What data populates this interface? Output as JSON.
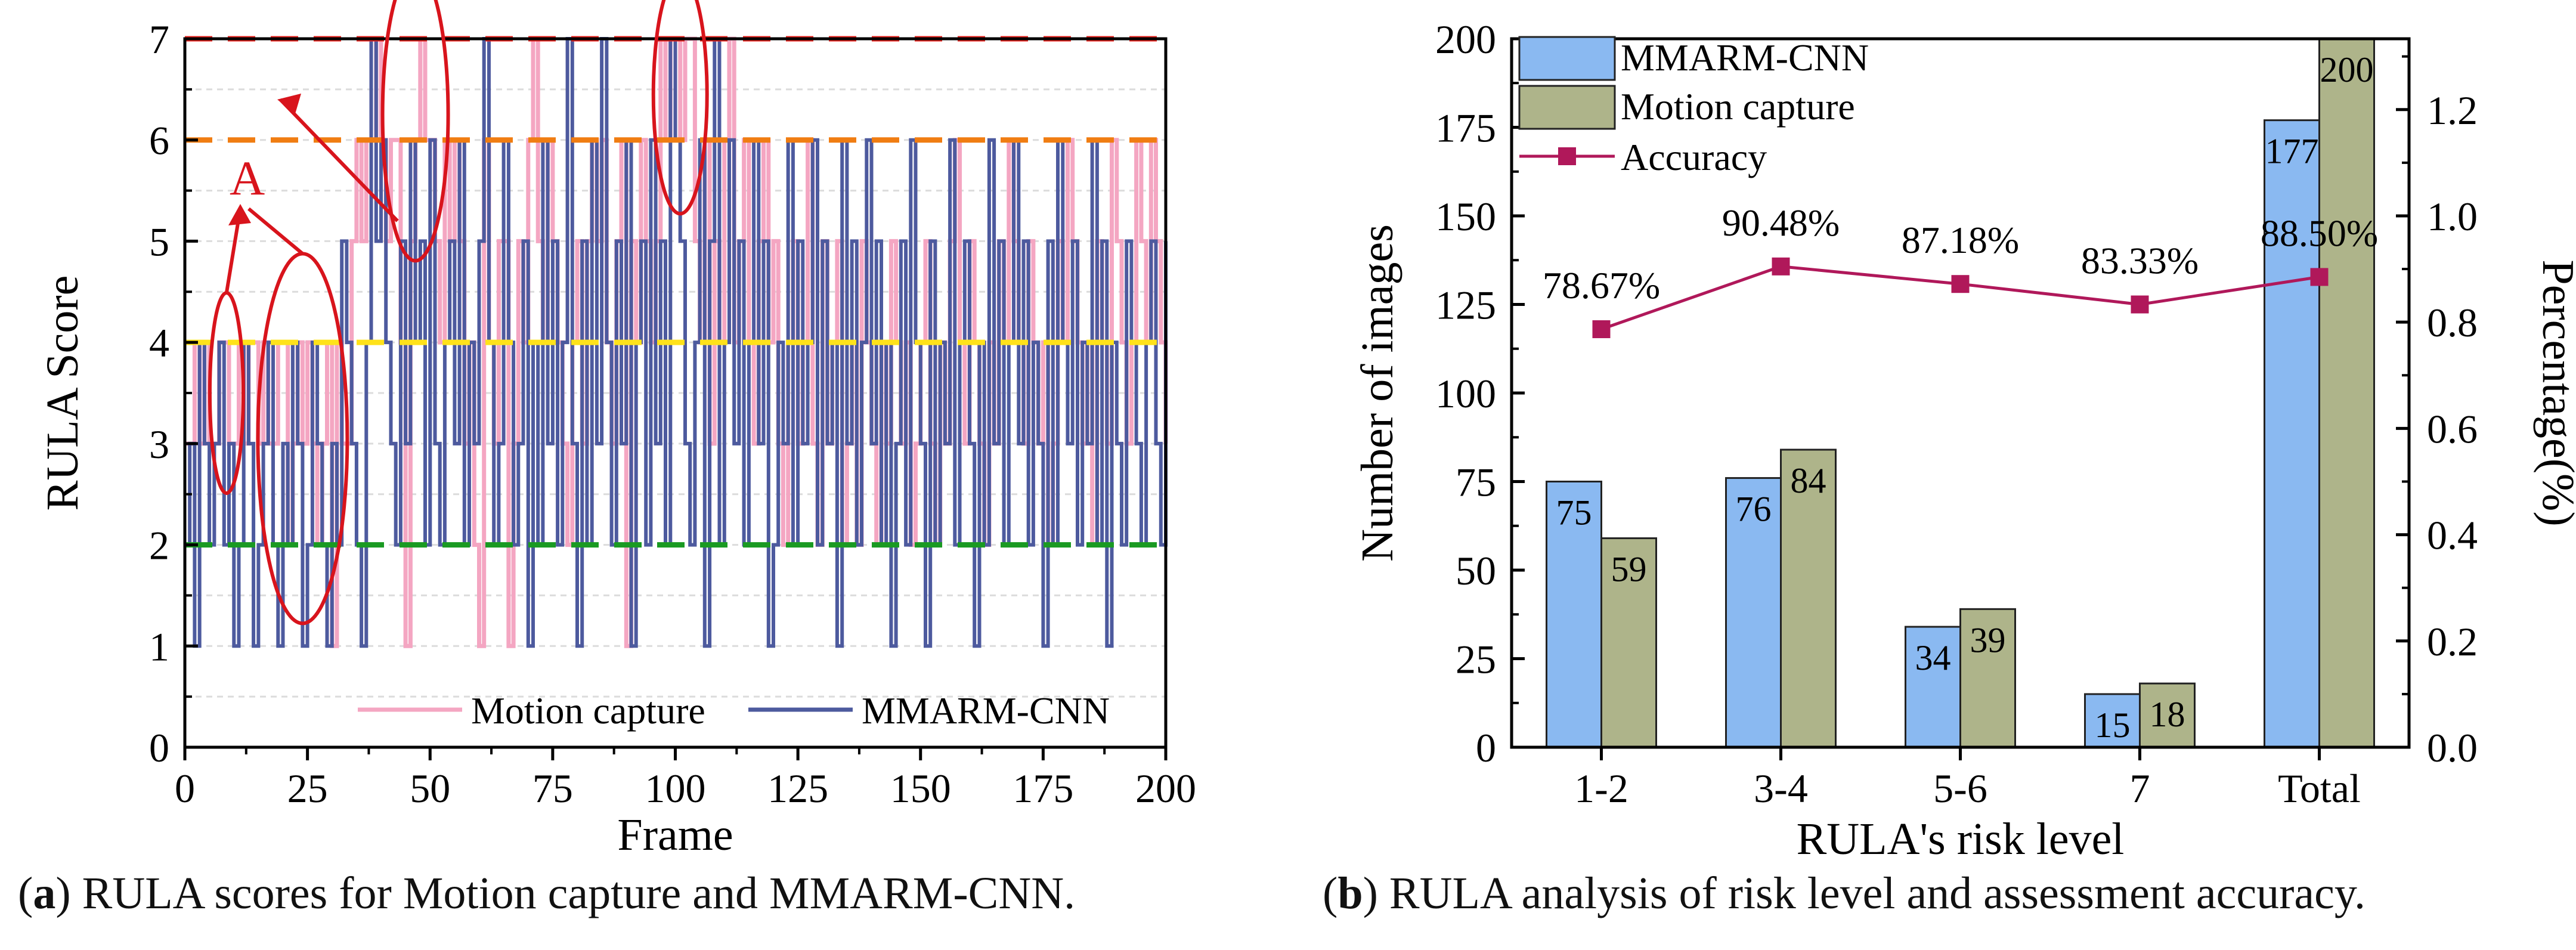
{
  "chart_data": [
    {
      "type": "line",
      "panel": "a",
      "title": "",
      "xlabel": "Frame",
      "ylabel": "RULA Score",
      "xlim": [
        0,
        200
      ],
      "ylim": [
        0,
        7
      ],
      "xticks": [
        0,
        25,
        50,
        75,
        100,
        125,
        150,
        175,
        200
      ],
      "yticks": [
        0,
        1,
        2,
        3,
        4,
        5,
        6,
        7
      ],
      "legend_position": "bottom-right",
      "reference_lines": [
        {
          "y": 7,
          "color": "#e8221c"
        },
        {
          "y": 6,
          "color": "#f07d12"
        },
        {
          "y": 4,
          "color": "#ffe21a"
        },
        {
          "y": 2,
          "color": "#1a9a22"
        }
      ],
      "series": [
        {
          "name": "Motion capture",
          "color": "#f4a6c2",
          "values": [
            3,
            3,
            4,
            3,
            4,
            3,
            3,
            4,
            4,
            3,
            3,
            4,
            3,
            4,
            4,
            3,
            4,
            3,
            3,
            4,
            4,
            2,
            3,
            4,
            3,
            4,
            3,
            2,
            3,
            4,
            1,
            4,
            3,
            3,
            5,
            6,
            5,
            6,
            6,
            7,
            6,
            5,
            6,
            6,
            4,
            1,
            5,
            6,
            7,
            6,
            6,
            5,
            4,
            6,
            5,
            6,
            5,
            3,
            4,
            2,
            1,
            6,
            4,
            3,
            5,
            5,
            1,
            3,
            5,
            4,
            6,
            7,
            5,
            4,
            6,
            5,
            4,
            3,
            2,
            4,
            5,
            3,
            5,
            6,
            5,
            6,
            4,
            3,
            5,
            6,
            1,
            5,
            4,
            6,
            5,
            4,
            5,
            7,
            6,
            7,
            7,
            6,
            7,
            7,
            5,
            4,
            6,
            3,
            5,
            4,
            6,
            7,
            4,
            5,
            6,
            4,
            3,
            5,
            6,
            4,
            5,
            3,
            2,
            4,
            5,
            3,
            4,
            6,
            3,
            2,
            5,
            3,
            4,
            5,
            2,
            3,
            4,
            2,
            5,
            4,
            3,
            2,
            4,
            3,
            5,
            4,
            3,
            4,
            2,
            3,
            4,
            5,
            3,
            2,
            4,
            3,
            5,
            6,
            4,
            3,
            5,
            4,
            3,
            2,
            4,
            3,
            5,
            4,
            6,
            5,
            4,
            3,
            5,
            4,
            3,
            4,
            2,
            3,
            5,
            4,
            6,
            5,
            4,
            3,
            4,
            2,
            5,
            4,
            3,
            6,
            5,
            4,
            3,
            4,
            6,
            5,
            4,
            6,
            5,
            4,
            3
          ]
        },
        {
          "name": "MMARM-CNN",
          "color": "#4d5a9e",
          "values": [
            2,
            3,
            1,
            4,
            3,
            2,
            3,
            4,
            2,
            3,
            1,
            2,
            4,
            3,
            1,
            2,
            3,
            4,
            2,
            1,
            3,
            2,
            4,
            3,
            1,
            2,
            4,
            3,
            2,
            1,
            3,
            2,
            5,
            4,
            3,
            2,
            1,
            4,
            7,
            5,
            6,
            4,
            3,
            2,
            5,
            3,
            6,
            4,
            5,
            2,
            6,
            3,
            2,
            4,
            5,
            3,
            6,
            2,
            4,
            3,
            5,
            7,
            4,
            2,
            3,
            6,
            4,
            2,
            3,
            5,
            1,
            4,
            2,
            6,
            3,
            5,
            2,
            4,
            7,
            3,
            1,
            5,
            2,
            6,
            3,
            7,
            4,
            2,
            5,
            3,
            6,
            1,
            4,
            5,
            2,
            6,
            3,
            5,
            2,
            7,
            6,
            5,
            3,
            2,
            4,
            6,
            1,
            5,
            7,
            2,
            4,
            6,
            3,
            5,
            2,
            4,
            6,
            3,
            5,
            1,
            2,
            4,
            3,
            6,
            2,
            5,
            3,
            4,
            6,
            2,
            5,
            3,
            4,
            1,
            6,
            3,
            5,
            2,
            4,
            6,
            3,
            5,
            2,
            4,
            1,
            3,
            5,
            2,
            6,
            4,
            3,
            1,
            5,
            2,
            4,
            3,
            6,
            2,
            4,
            5,
            3,
            1,
            4,
            2,
            6,
            3,
            5,
            2,
            4,
            6,
            3,
            5,
            2,
            4,
            3,
            1,
            5,
            2,
            6,
            4,
            3,
            5,
            2,
            4,
            3,
            6,
            2,
            5,
            1,
            4,
            3,
            2,
            5,
            4,
            3,
            2,
            4,
            5,
            3,
            2,
            5
          ]
        }
      ],
      "annotations": [
        {
          "text": "A"
        }
      ]
    },
    {
      "type": "bar",
      "panel": "b",
      "title": "",
      "xlabel": "RULA's risk level",
      "ylabel": "Number of images",
      "y2label": "Percentage(%)",
      "categories": [
        "1-2",
        "3-4",
        "5-6",
        "7",
        "Total"
      ],
      "ylim": [
        0,
        200
      ],
      "y2lim": [
        0,
        1.3333
      ],
      "yticks": [
        0,
        25,
        50,
        75,
        100,
        125,
        150,
        175,
        200
      ],
      "y2ticks": [
        0.0,
        0.2,
        0.4,
        0.6,
        0.8,
        1.0,
        1.2
      ],
      "y2tick_labels": [
        "0.0",
        "0.2",
        "0.4",
        "0.6",
        "0.8",
        "1.0",
        "1.2"
      ],
      "legend_position": "top-left",
      "series": [
        {
          "name": "MMARM-CNN",
          "color": "#8ab9f1",
          "values": [
            75,
            76,
            34,
            15,
            177
          ]
        },
        {
          "name": "Motion capture",
          "color": "#aeb48a",
          "values": [
            59,
            84,
            39,
            18,
            200
          ]
        },
        {
          "name": "Accuracy",
          "color": "#b0185a",
          "axis": "right",
          "values": [
            0.7867,
            0.9048,
            0.8718,
            0.8333,
            0.885
          ],
          "labels": [
            "78.67%",
            "90.48%",
            "87.18%",
            "83.33%",
            "88.50%"
          ]
        }
      ]
    }
  ],
  "captions": {
    "a": {
      "letter": "a",
      "text": ") RULA scores for Motion capture and MMARM-CNN."
    },
    "b": {
      "letter": "b",
      "text": ") RULA analysis of risk level and assessment accuracy."
    }
  }
}
